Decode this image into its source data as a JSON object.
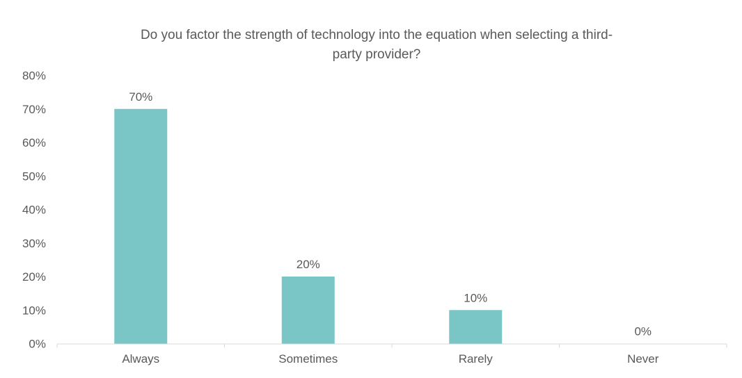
{
  "chart_data": {
    "type": "bar",
    "title_lines": [
      "Do you factor the strength of technology into the equation when selecting a third-",
      "party provider?"
    ],
    "categories": [
      "Always",
      "Sometimes",
      "Rarely",
      "Never"
    ],
    "values": [
      70,
      20,
      10,
      0
    ],
    "data_labels": [
      "70%",
      "20%",
      "10%",
      "0%"
    ],
    "xlabel": "",
    "ylabel": "",
    "ylim": [
      0,
      80
    ],
    "yticks": [
      0,
      10,
      20,
      30,
      40,
      50,
      60,
      70,
      80
    ],
    "ytick_labels": [
      "0%",
      "10%",
      "20%",
      "30%",
      "40%",
      "50%",
      "60%",
      "70%",
      "80%"
    ],
    "grid": false,
    "legend": "none",
    "colors": {
      "bar": "#7AC5C6",
      "text": "#595959",
      "axis": "#D9D9D9"
    }
  }
}
